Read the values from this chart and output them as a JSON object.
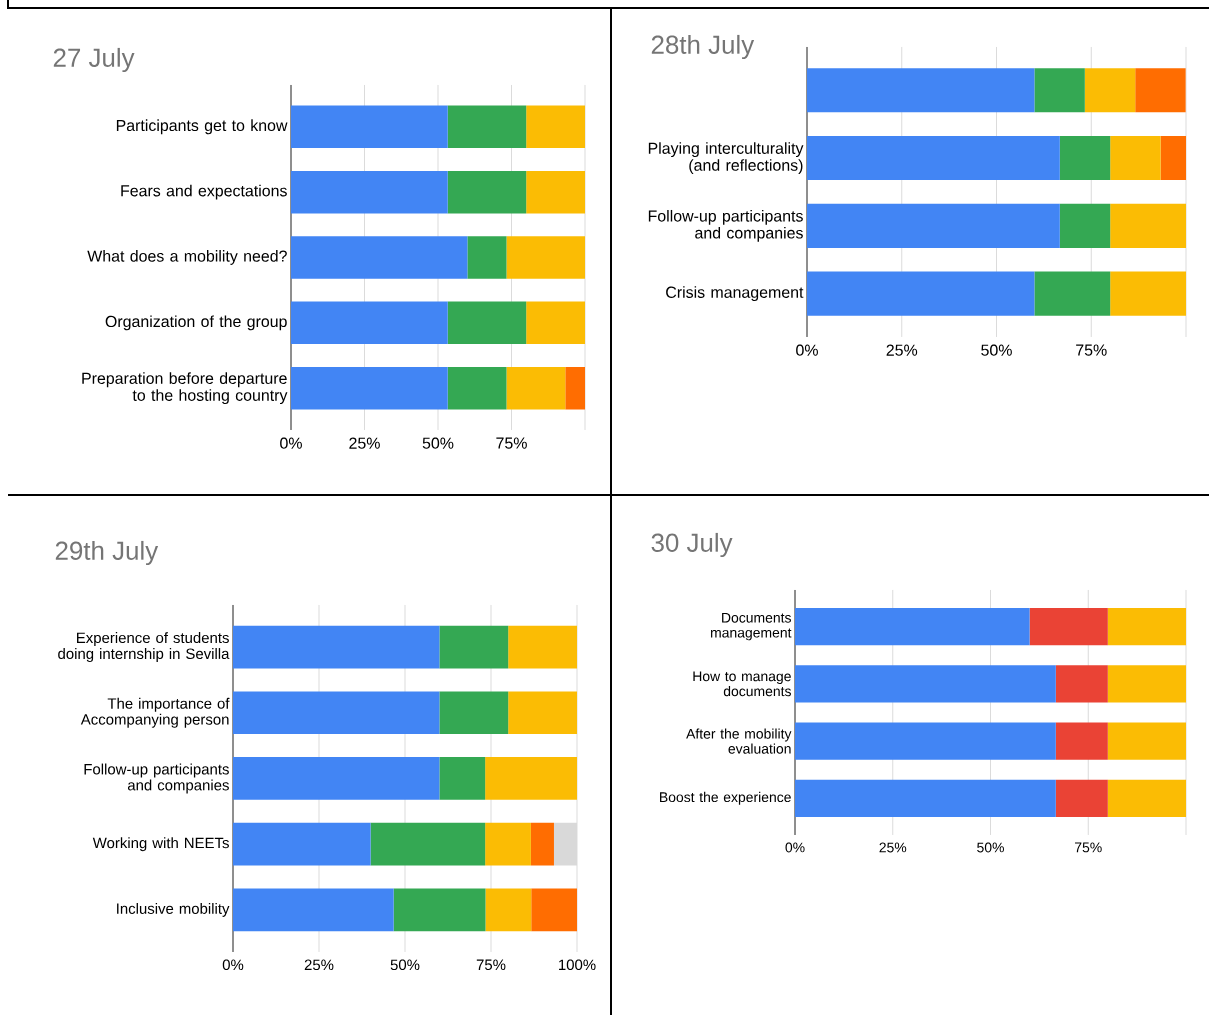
{
  "chart_data": [
    {
      "type": "bar",
      "orientation": "horizontal",
      "stacked": true,
      "title": "27 July",
      "grid": "x",
      "categories": [
        "Participants get to know",
        "Fears and expectations",
        "What does a mobility need?",
        "Organization of the group",
        "Preparation before departure to the hosting country"
      ],
      "xlim": [
        0,
        100
      ],
      "xticks": [
        {
          "value": 0,
          "label": "0%"
        },
        {
          "value": 25,
          "label": "25%"
        },
        {
          "value": 50,
          "label": "50%"
        },
        {
          "value": 75,
          "label": "75%"
        },
        {
          "value": 100,
          "label": null
        }
      ],
      "series": [
        {
          "color": "#4285f4",
          "values": [
            53.3,
            53.3,
            60,
            53.3,
            53.3
          ]
        },
        {
          "color": "#34a853",
          "values": [
            26.7,
            26.7,
            13.3,
            26.7,
            20
          ]
        },
        {
          "color": "#fbbc04",
          "values": [
            20,
            20,
            26.7,
            20,
            20
          ]
        },
        {
          "color": "#ff6d01",
          "values": [
            null,
            null,
            null,
            null,
            6.7
          ]
        }
      ]
    },
    {
      "type": "bar",
      "orientation": "horizontal",
      "stacked": true,
      "title": "28th July",
      "grid": "x",
      "categories": [
        null,
        "Playing interculturality (and reflections)",
        "Follow-up participants and companies",
        "Crisis management"
      ],
      "xlim": [
        0,
        100
      ],
      "xticks": [
        {
          "value": 0,
          "label": "0%"
        },
        {
          "value": 25,
          "label": "25%"
        },
        {
          "value": 50,
          "label": "50%"
        },
        {
          "value": 75,
          "label": "75%"
        },
        {
          "value": 100,
          "label": null
        }
      ],
      "series": [
        {
          "color": "#4285f4",
          "values": [
            60,
            66.7,
            66.7,
            60
          ]
        },
        {
          "color": "#34a853",
          "values": [
            13.3,
            13.3,
            13.3,
            20
          ]
        },
        {
          "color": "#fbbc04",
          "values": [
            13.3,
            13.3,
            20,
            20
          ]
        },
        {
          "color": "#ff6d01",
          "values": [
            13.3,
            6.7,
            null,
            null
          ]
        }
      ]
    },
    {
      "type": "bar",
      "orientation": "horizontal",
      "stacked": true,
      "title": "29th July",
      "grid": "x",
      "categories": [
        "Experience of students doing internship in Sevilla",
        "The importance of Accompanying person",
        "Follow-up participants and companies",
        "Working with NEETs",
        "Inclusive mobility"
      ],
      "xlim": [
        0,
        100
      ],
      "xticks": [
        {
          "value": 0,
          "label": "0%"
        },
        {
          "value": 25,
          "label": "25%"
        },
        {
          "value": 50,
          "label": "50%"
        },
        {
          "value": 75,
          "label": "75%"
        },
        {
          "value": 100,
          "label": "100%"
        }
      ],
      "series": [
        {
          "color": "#4285f4",
          "values": [
            60,
            60,
            60,
            40,
            46.7
          ]
        },
        {
          "color": "#34a853",
          "values": [
            20,
            20,
            13.3,
            33.3,
            26.7
          ]
        },
        {
          "color": "#fbbc04",
          "values": [
            20,
            20,
            26.7,
            13.3,
            13.3
          ]
        },
        {
          "color": "#ff6d01",
          "values": [
            null,
            null,
            null,
            6.7,
            13.3
          ]
        },
        {
          "color": "#d9d9d9",
          "values": [
            null,
            null,
            null,
            6.7,
            null
          ]
        }
      ]
    },
    {
      "type": "bar",
      "orientation": "horizontal",
      "stacked": true,
      "title": "30 July",
      "grid": "x",
      "categories": [
        "Documents management",
        "How to manage documents",
        "After the mobility evaluation",
        "Boost the experience"
      ],
      "xlim": [
        0,
        100
      ],
      "xticks": [
        {
          "value": 0,
          "label": "0%"
        },
        {
          "value": 25,
          "label": "25%"
        },
        {
          "value": 50,
          "label": "50%"
        },
        {
          "value": 75,
          "label": "75%"
        },
        {
          "value": 100,
          "label": null
        }
      ],
      "series": [
        {
          "color": "#4285f4",
          "values": [
            60,
            66.7,
            66.7,
            66.7
          ]
        },
        {
          "color": "#ea4335",
          "values": [
            20,
            13.3,
            13.3,
            13.3
          ]
        },
        {
          "color": "#fbbc04",
          "values": [
            20,
            20,
            20,
            20
          ]
        }
      ]
    }
  ]
}
